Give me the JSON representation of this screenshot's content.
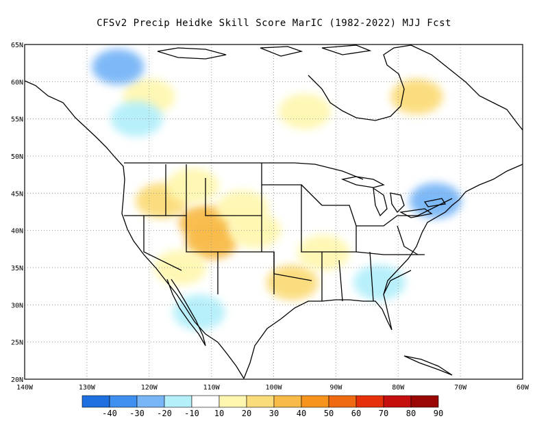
{
  "title": "CFSv2 Precip Heidke Skill Score MarIC (1982-2022) MJJ Fcst",
  "map": {
    "lon_range": [
      -140,
      -60
    ],
    "lat_range": [
      20,
      65
    ],
    "grid": true,
    "lat_labels": [
      "20N",
      "25N",
      "30N",
      "35N",
      "40N",
      "45N",
      "50N",
      "55N",
      "60N",
      "65N"
    ],
    "lon_labels": [
      "140W",
      "130W",
      "120W",
      "110W",
      "100W",
      "90W",
      "80W",
      "70W",
      "60W"
    ]
  },
  "colorbar": {
    "labels": [
      "-40",
      "-30",
      "-20",
      "-10",
      "10",
      "20",
      "30",
      "40",
      "50",
      "60",
      "70",
      "80",
      "90"
    ],
    "colors": [
      "#1e6fe0",
      "#3f8ff0",
      "#78b6f7",
      "#b4effa",
      "#ffffff",
      "#fff7b0",
      "#fbdc7a",
      "#f8bb48",
      "#f6941e",
      "#f06a12",
      "#e6300a",
      "#c50e0e",
      "#9a0505"
    ]
  },
  "shading": [
    {
      "lat": 44,
      "lon": -118,
      "level": "30"
    },
    {
      "lat": 41,
      "lon": -111,
      "level": "40"
    },
    {
      "lat": 38.5,
      "lon": -110,
      "level": "40"
    },
    {
      "lat": 43,
      "lon": -105,
      "level": "20"
    },
    {
      "lat": 46,
      "lon": -113,
      "level": "20"
    },
    {
      "lat": 40,
      "lon": -103,
      "level": "20"
    },
    {
      "lat": 33,
      "lon": -97,
      "level": "30"
    },
    {
      "lat": 37,
      "lon": -92,
      "level": "20"
    },
    {
      "lat": 58,
      "lon": -77,
      "level": "30"
    },
    {
      "lat": 56,
      "lon": -95,
      "level": "20"
    },
    {
      "lat": 58,
      "lon": -120,
      "level": "20"
    },
    {
      "lat": 62,
      "lon": -125,
      "level": "-20"
    },
    {
      "lat": 55,
      "lon": -122,
      "level": "-10"
    },
    {
      "lat": 44,
      "lon": -74,
      "level": "-20"
    },
    {
      "lat": 33,
      "lon": -83,
      "level": "-10"
    },
    {
      "lat": 35,
      "lon": -115,
      "level": "20"
    },
    {
      "lat": 29,
      "lon": -112,
      "level": "-10"
    }
  ]
}
